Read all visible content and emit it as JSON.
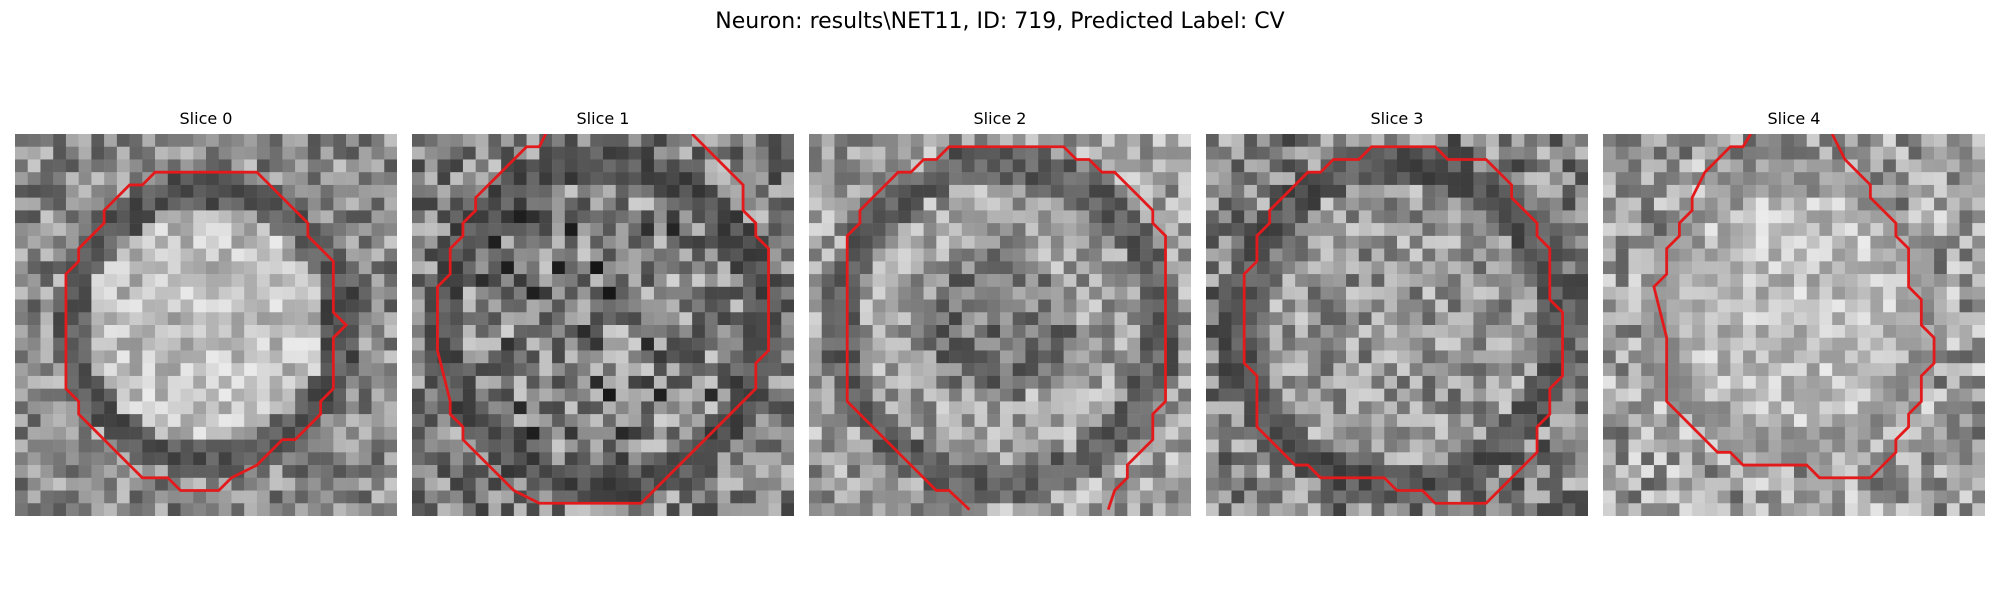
{
  "figure": {
    "title": "Neuron: results\\NET11, ID: 719, Predicted Label: CV"
  },
  "contour_color": "#e31a1c",
  "colormap": "gray",
  "panels": [
    {
      "title": "Slice 0",
      "interior": "bright",
      "ring": "dark",
      "contour_open": false,
      "corner_dark": "bottom-left"
    },
    {
      "title": "Slice 1",
      "interior": "dark-patches",
      "ring": "dark",
      "contour_open": true,
      "corner_dark": "left"
    },
    {
      "title": "Slice 2",
      "interior": "dark-center",
      "ring": "dark",
      "contour_open": true,
      "corner_dark": "top-right"
    },
    {
      "title": "Slice 3",
      "interior": "mottled",
      "ring": "dark",
      "contour_open": false,
      "corner_dark": "top-right"
    },
    {
      "title": "Slice 4",
      "interior": "bright",
      "ring": "faint",
      "contour_open": true,
      "corner_dark": "right"
    }
  ]
}
